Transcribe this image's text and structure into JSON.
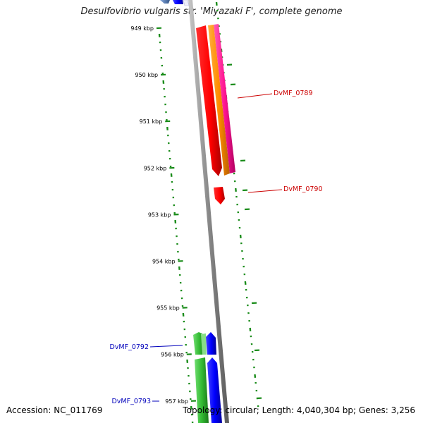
{
  "title": "Desulfovibrio vulgaris str. 'Miyazaki F', complete genome",
  "footer": {
    "accession": "Accession: NC_011769",
    "summary": "Topology: circular; Length: 4,040,304 bp; Genes: 3,256"
  },
  "scale_ticks": [
    {
      "label": "949 kbp"
    },
    {
      "label": "950 kbp"
    },
    {
      "label": "951 kbp"
    },
    {
      "label": "952 kbp"
    },
    {
      "label": "953 kbp"
    },
    {
      "label": "954 kbp"
    },
    {
      "label": "955 kbp"
    },
    {
      "label": "956 kbp"
    },
    {
      "label": "957 kbp"
    }
  ],
  "gene_labels": [
    {
      "name": "DvMF_0789",
      "color": "#cc0000"
    },
    {
      "name": "DvMF_0790",
      "color": "#cc0000"
    },
    {
      "name": "DvMF_0792",
      "color": "#0000bb"
    },
    {
      "name": "DvMF_0793",
      "color": "#0000bb"
    }
  ],
  "colors": {
    "backbone": "#8c8c8c",
    "gc_skew": "#1a8c1a",
    "gene_red": "#ff0000",
    "gene_orange": "#ff8c00",
    "gene_pink": "#ff1493",
    "gene_green": "#33bb33",
    "gene_blue": "#0000ff",
    "gene_steel": "#4477aa"
  }
}
